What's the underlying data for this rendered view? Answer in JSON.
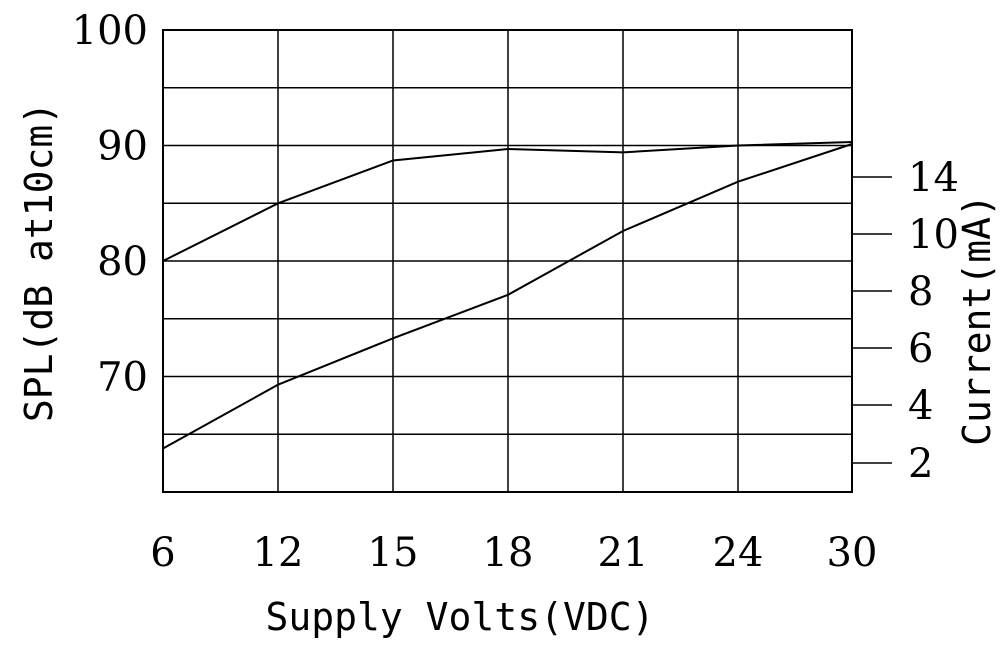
{
  "chart_data": {
    "type": "line",
    "title": "",
    "xlabel": "Supply Volts(VDC)",
    "ylabel": "SPL(dB at10cm)",
    "y2label": "Current(mA)",
    "x_categories": [
      "6",
      "12",
      "15",
      "18",
      "21",
      "24",
      "30"
    ],
    "ylim": [
      60,
      100
    ],
    "y_ticks": [
      "100",
      "90",
      "80",
      "70"
    ],
    "y2_ticks": [
      "14",
      "10",
      "8",
      "6",
      "4",
      "2"
    ],
    "grid": true,
    "legend": "none",
    "series": [
      {
        "axis": "left",
        "x": [
          "6",
          "12",
          "15",
          "18",
          "21",
          "24",
          "30"
        ],
        "values": [
          80,
          85,
          88.7,
          89.7,
          89.4,
          90,
          90.3
        ]
      },
      {
        "axis": "right",
        "x": [
          "6",
          "12",
          "15",
          "18",
          "21",
          "24",
          "30"
        ],
        "values": [
          2.5,
          4.7,
          6.3,
          7.8,
          10.0,
          11.7,
          13.0
        ]
      }
    ]
  }
}
